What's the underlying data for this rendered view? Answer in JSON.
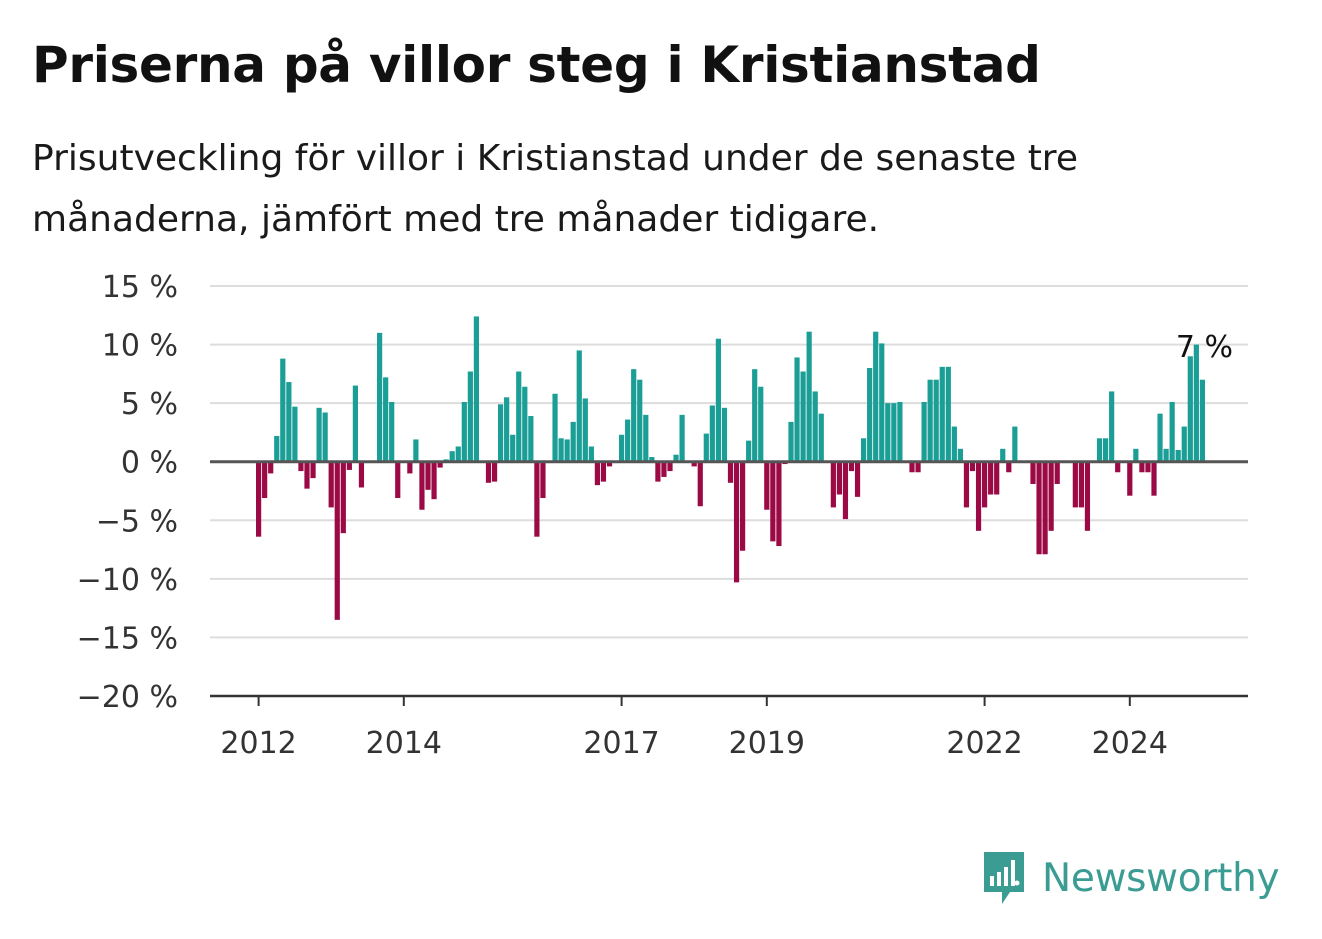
{
  "title": "Priserna på villor steg i Kristianstad",
  "subtitle": "Prisutveckling för villor i Kristianstad under de senaste tre månaderna, jämfört med tre månader tidigare.",
  "brand": {
    "name": "Newsworthy",
    "icon": "newsworthy-logo-icon"
  },
  "colors": {
    "positive": "#1a9e96",
    "negative": "#9b0a45",
    "grid": "#dddddd",
    "zero_line": "#555555",
    "brand": "#3a9c92"
  },
  "chart_data": {
    "type": "bar",
    "ylim": [
      -20,
      15
    ],
    "y_ticks": [
      {
        "value": 15,
        "label": "15 %"
      },
      {
        "value": 10,
        "label": "10 %"
      },
      {
        "value": 5,
        "label": "5 %"
      },
      {
        "value": 0,
        "label": "0 %"
      },
      {
        "value": -5,
        "label": "−5 %"
      },
      {
        "value": -10,
        "label": "−10 %"
      },
      {
        "value": -15,
        "label": "−15 %"
      },
      {
        "value": -20,
        "label": "−20 %"
      }
    ],
    "x_ticks": [
      "2012",
      "2014",
      "2017",
      "2019",
      "2022",
      "2024"
    ],
    "x_start": "2012-01",
    "last_value_label": "7 %",
    "grid": true,
    "values": [
      -6.4,
      -3.1,
      -1.0,
      2.2,
      8.8,
      6.8,
      4.7,
      -0.8,
      -2.3,
      -1.4,
      4.6,
      4.2,
      -3.9,
      -13.5,
      -6.1,
      -0.7,
      6.5,
      -2.2,
      0,
      0,
      11.0,
      7.2,
      5.1,
      -3.1,
      0,
      -1.0,
      1.9,
      -4.1,
      -2.4,
      -3.2,
      -0.5,
      0.2,
      0.9,
      1.3,
      5.1,
      7.7,
      12.4,
      0,
      -1.8,
      -1.7,
      4.9,
      5.5,
      2.3,
      7.7,
      6.4,
      3.9,
      -6.4,
      -3.1,
      0,
      5.8,
      2.0,
      1.9,
      3.4,
      9.5,
      5.4,
      1.3,
      -2.0,
      -1.7,
      -0.4,
      0,
      2.3,
      3.6,
      7.9,
      7.0,
      4.0,
      0.4,
      -1.7,
      -1.3,
      -0.8,
      0.6,
      4.0,
      0,
      -0.4,
      -3.8,
      2.4,
      4.8,
      10.5,
      4.6,
      -1.8,
      -10.3,
      -7.6,
      1.8,
      7.9,
      6.4,
      -4.1,
      -6.8,
      -7.2,
      -0.2,
      3.4,
      8.9,
      7.7,
      11.1,
      6.0,
      4.1,
      0,
      -3.9,
      -2.8,
      -4.9,
      -0.8,
      -3.0,
      2.0,
      8.0,
      11.1,
      10.1,
      5.0,
      5.0,
      5.1,
      0,
      -0.9,
      -0.9,
      5.1,
      7.0,
      7.0,
      8.1,
      8.1,
      3.0,
      1.1,
      -3.9,
      -0.8,
      -5.9,
      -3.9,
      -2.8,
      -2.8,
      1.1,
      -0.9,
      3.0,
      0,
      0,
      -1.9,
      -7.9,
      -7.9,
      -5.9,
      -1.9,
      0,
      0,
      -3.9,
      -3.9,
      -5.9,
      0,
      2.0,
      2.0,
      6.0,
      -0.9,
      0,
      -2.9,
      1.1,
      -0.9,
      -0.9,
      -2.9,
      4.1,
      1.1,
      5.1,
      1.0,
      3.0,
      9.0,
      10.0,
      7.0
    ]
  }
}
